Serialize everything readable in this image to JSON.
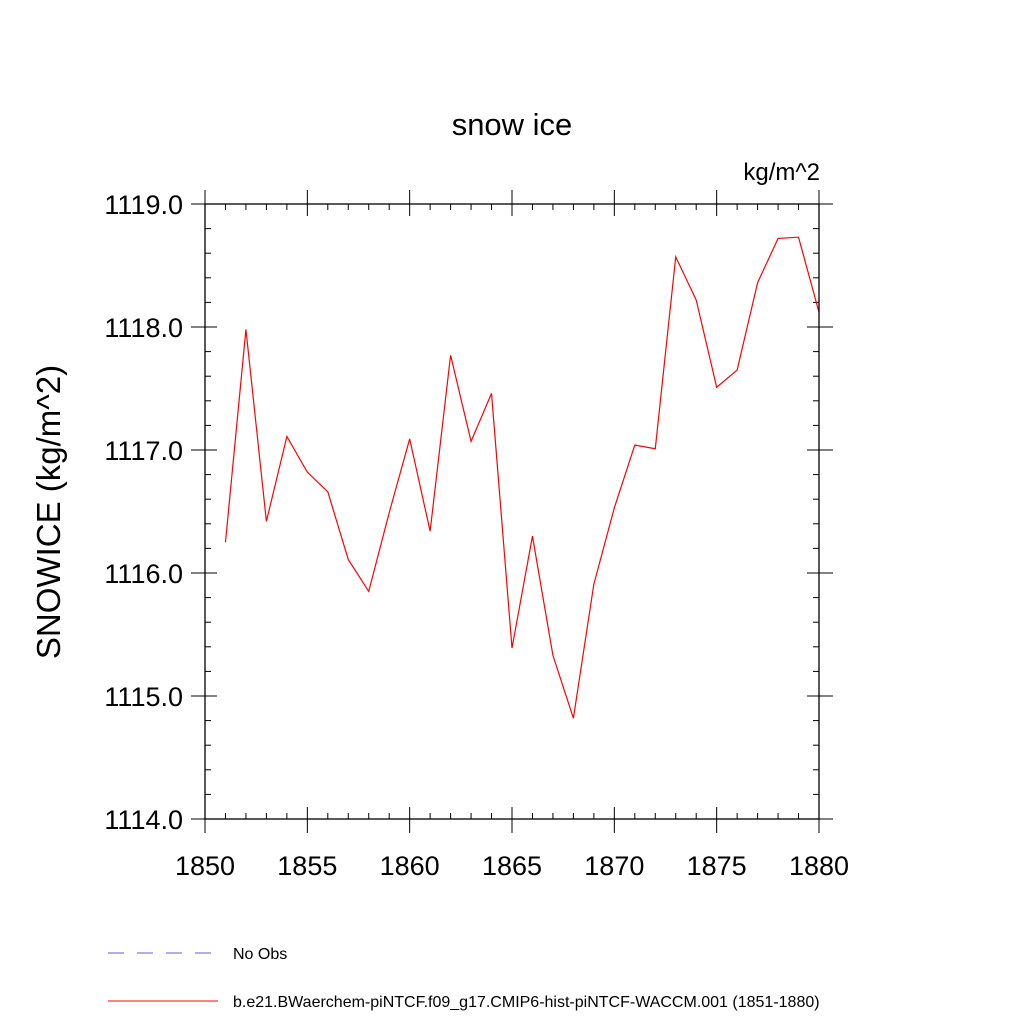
{
  "chart_data": {
    "type": "line",
    "title": "snow ice",
    "units_label": "kg/m^2",
    "ylabel": "SNOWICE  (kg/m^2)",
    "xlabel": "",
    "xlim": [
      1850,
      1880
    ],
    "ylim": [
      1114.0,
      1119.0
    ],
    "x_ticks": [
      "1850",
      "1855",
      "1860",
      "1865",
      "1870",
      "1875",
      "1880"
    ],
    "y_ticks": [
      "1114.0",
      "1115.0",
      "1116.0",
      "1117.0",
      "1118.0",
      "1119.0"
    ],
    "grid": false,
    "legend_position": "bottom-left",
    "series": [
      {
        "name": "b.e21.BWaerchem-piNTCF.f09_g17.CMIP6-hist-piNTCF-WACCM.001 (1851-1880)",
        "color": "#ff0000",
        "style": "solid",
        "x": [
          1851,
          1852,
          1853,
          1854,
          1855,
          1856,
          1857,
          1858,
          1859,
          1860,
          1861,
          1862,
          1863,
          1864,
          1865,
          1866,
          1867,
          1868,
          1869,
          1870,
          1871,
          1872,
          1873,
          1874,
          1875,
          1876,
          1877,
          1878,
          1879,
          1880
        ],
        "values": [
          1116.25,
          1117.98,
          1116.42,
          1117.11,
          1116.82,
          1116.66,
          1116.11,
          1115.85,
          1116.49,
          1117.09,
          1116.34,
          1117.77,
          1117.07,
          1117.46,
          1115.39,
          1116.3,
          1115.33,
          1114.82,
          1115.91,
          1116.53,
          1117.04,
          1117.01,
          1118.57,
          1118.22,
          1117.51,
          1117.65,
          1118.36,
          1118.72,
          1118.73,
          1118.12
        ]
      }
    ],
    "legend": [
      {
        "label": "No Obs",
        "color": "#6a5acd",
        "style": "dashed"
      },
      {
        "label": "b.e21.BWaerchem-piNTCF.f09_g17.CMIP6-hist-piNTCF-WACCM.001 (1851-1880)",
        "color": "#ff0000",
        "style": "solid"
      }
    ]
  }
}
